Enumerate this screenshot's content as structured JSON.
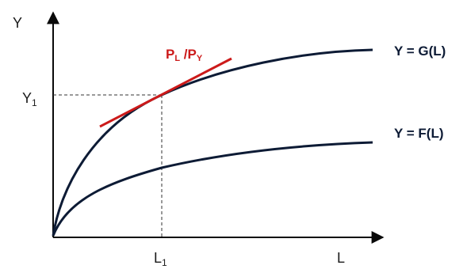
{
  "axes": {
    "y_label": "Y",
    "x_label": "L"
  },
  "marked_point": {
    "y_value": {
      "main": "Y",
      "sub": "1"
    },
    "x_value": {
      "main": "L",
      "sub": "1"
    }
  },
  "curves": {
    "upper": {
      "label": "Y = G(L)",
      "color": "#0d1b35"
    },
    "lower": {
      "label": "Y = F(L)",
      "color": "#0d1b35"
    }
  },
  "tangent": {
    "label_parts": {
      "p1": "P",
      "p1_sub": "L",
      "slash": " /",
      "p2": "P",
      "p2_sub": "Y"
    },
    "color": "#cc1a1a"
  },
  "colors": {
    "axis": "#0a0a0a",
    "guide": "#333333",
    "label_red": "#cc1a1a"
  }
}
